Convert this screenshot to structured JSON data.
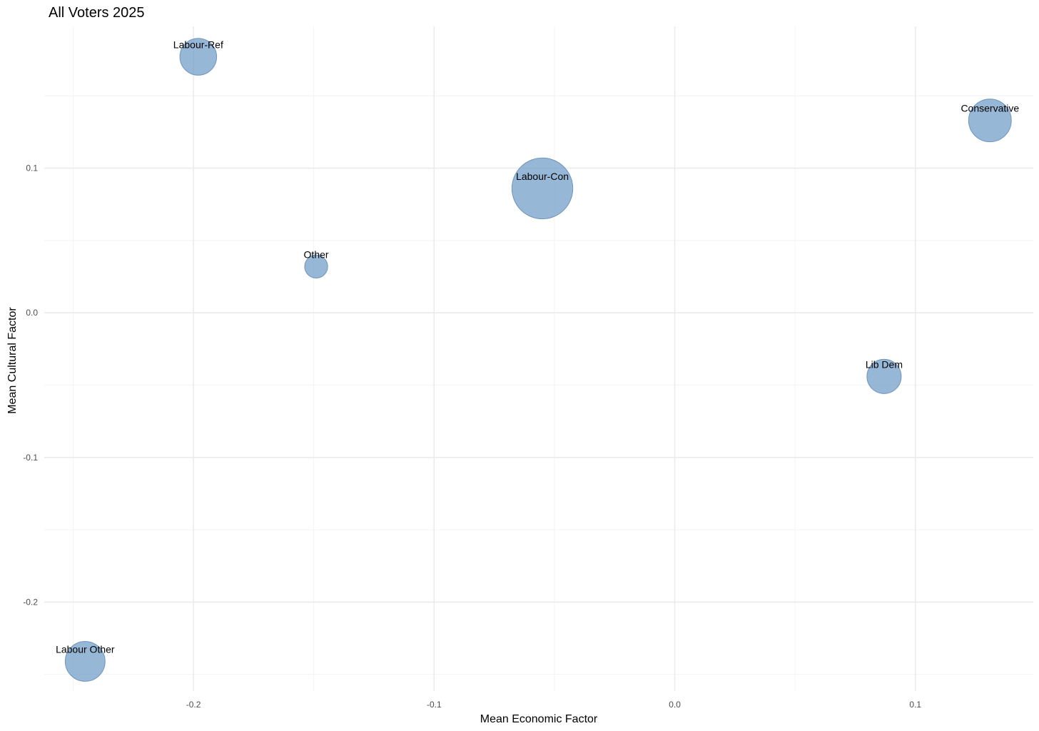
{
  "chart_data": {
    "type": "scatter",
    "title": "All Voters 2025",
    "xlabel": "Mean Economic Factor",
    "ylabel": "Mean Cultural Factor",
    "xlim": [
      -0.262,
      0.149
    ],
    "ylim": [
      -0.2615,
      0.198
    ],
    "x_ticks": [
      -0.2,
      -0.1,
      0.0,
      0.1
    ],
    "x_tick_labels": [
      "-0.2",
      "-0.1",
      "0.0",
      "0.1"
    ],
    "y_ticks": [
      -0.2,
      -0.1,
      0.0,
      0.1
    ],
    "y_tick_labels": [
      "-0.2",
      "-0.1",
      "0.0",
      "0.1"
    ],
    "grid": true,
    "legend": "none",
    "point_color": "#6f9bc6",
    "point_stroke": "#5a86b3",
    "points": [
      {
        "label": "Labour-Ref",
        "x": -0.198,
        "y": 0.177,
        "size": 2.3
      },
      {
        "label": "Conservative",
        "x": 0.131,
        "y": 0.133,
        "size": 3.1
      },
      {
        "label": "Labour-Con",
        "x": -0.055,
        "y": 0.086,
        "size": 6.3
      },
      {
        "label": "Other",
        "x": -0.149,
        "y": 0.032,
        "size": 0.9
      },
      {
        "label": "Lib Dem",
        "x": 0.087,
        "y": -0.044,
        "size": 2.0
      },
      {
        "label": "Labour Other",
        "x": -0.245,
        "y": -0.241,
        "size": 2.7
      }
    ]
  }
}
